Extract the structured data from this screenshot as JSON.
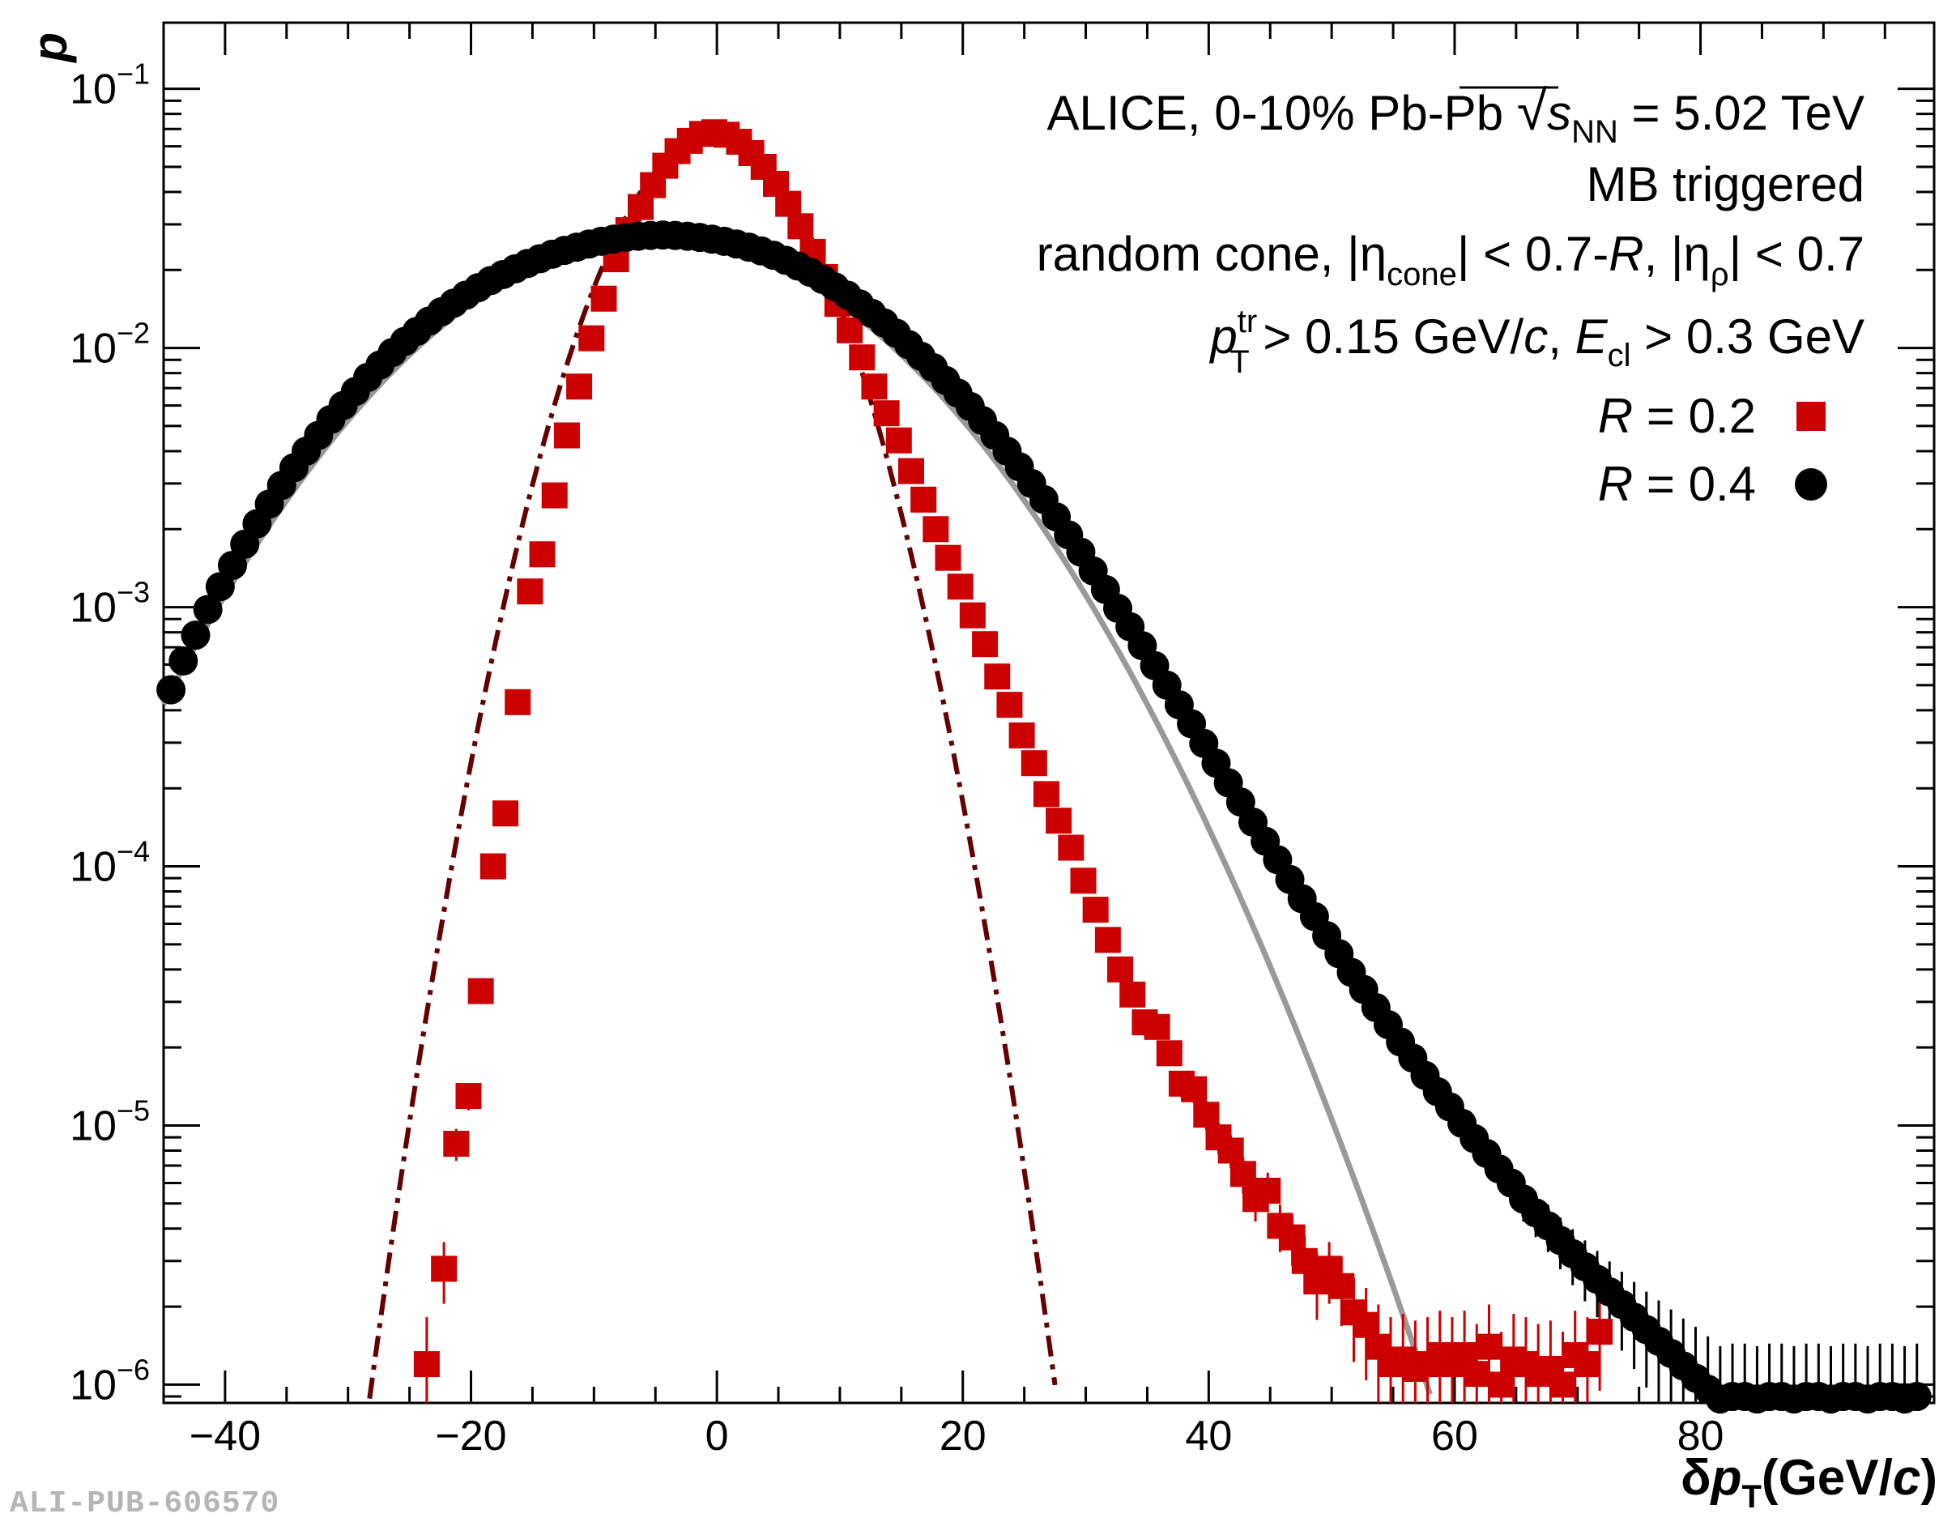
{
  "chart_data": {
    "type": "scatter",
    "xlabel": "δp_T (GeV/c)",
    "xlabel_parts": {
      "delta": "δ",
      "p": "p",
      "sub": "T",
      "unit_open": "(GeV/",
      "unit_c": "c",
      "unit_close": ")"
    },
    "ylabel": "p",
    "xlim": [
      -45,
      99
    ],
    "ylim": [
      8.5e-07,
      0.18
    ],
    "yscale": "log",
    "x_ticks": [
      -40,
      -20,
      0,
      20,
      40,
      60,
      80
    ],
    "x_tick_labels": [
      "−40",
      "−20",
      "0",
      "20",
      "40",
      "60",
      "80"
    ],
    "y_ticks": [
      1e-06,
      1e-05,
      0.0001,
      0.001,
      0.01,
      0.1
    ],
    "y_tick_labels": [
      {
        "base": "10",
        "exp": "−6"
      },
      {
        "base": "10",
        "exp": "−5"
      },
      {
        "base": "10",
        "exp": "−4"
      },
      {
        "base": "10",
        "exp": "−3"
      },
      {
        "base": "10",
        "exp": "−2"
      },
      {
        "base": "10",
        "exp": "−1"
      }
    ],
    "grid": false,
    "legend_position": "top-right",
    "annotations": [
      "ALICE, 0-10% Pb-Pb √s_NN = 5.02 TeV",
      "MB triggered",
      "random cone, |η_cone| < 0.7-R, |η_ρ| < 0.7",
      "p_T^tr > 0.15 GeV/c, E_cl > 0.3 GeV"
    ],
    "annotation_parts": {
      "line1_a": "ALICE, 0-10% Pb-Pb ",
      "line1_s": "s",
      "line1_nn": "NN",
      "line1_b": " = 5.02 TeV",
      "line3_a": "random cone, |η",
      "line3_cone": "cone",
      "line3_b": "| < 0.7-",
      "line3_R": "R",
      "line3_c": ", |η",
      "line3_rho": "ρ",
      "line3_d": "| < 0.7",
      "line4_p": "p",
      "line4_tr": "tr",
      "line4_T": "T",
      "line4_a": " > 0.15 GeV/",
      "line4_c": "c",
      "line4_b": ", ",
      "line4_E": "E",
      "line4_cl": "cl",
      "line4_d": " > 0.3 GeV"
    },
    "series": [
      {
        "name": "R = 0.2",
        "label_R": "R",
        "label_rest": " = 0.2",
        "marker": "square",
        "color": "#cc0000",
        "x": [
          -23.6,
          -22.2,
          -21.2,
          -20.2,
          -19.2,
          -18.2,
          -17.2,
          -16.2,
          -15.2,
          -14.2,
          -13.2,
          -12.2,
          -11.2,
          -10.2,
          -9.2,
          -8.2,
          -7.2,
          -6.2,
          -5.2,
          -4.2,
          -3.2,
          -2.2,
          -1.2,
          -0.2,
          0.8,
          1.8,
          2.8,
          3.8,
          4.8,
          5.8,
          6.8,
          7.8,
          8.8,
          9.8,
          10.8,
          11.8,
          12.8,
          13.8,
          14.8,
          15.8,
          16.8,
          17.8,
          18.8,
          19.8,
          20.8,
          21.8,
          22.8,
          23.8,
          24.8,
          25.8,
          26.8,
          27.8,
          28.8,
          29.8,
          30.8,
          31.8,
          32.8,
          33.8,
          34.8,
          35.8,
          36.8,
          37.8,
          38.8,
          39.8,
          40.8,
          41.8,
          42.8,
          43.8,
          44.8,
          45.8,
          46.8,
          47.8,
          48.8,
          49.8,
          50.8,
          51.8,
          52.8,
          53.8,
          54.8,
          55.8,
          56.8,
          57.8,
          58.8,
          59.8,
          60.8,
          61.8,
          62.8,
          63.8,
          64.8,
          65.8,
          66.8,
          67.8,
          68.8,
          69.8,
          70.8,
          71.8
        ],
        "y": [
          1.2e-06,
          2.8e-06,
          8.5e-06,
          1.3e-05,
          3.3e-05,
          0.0001,
          0.00016,
          0.00043,
          0.00115,
          0.0016,
          0.0027,
          0.0046,
          0.0071,
          0.0109,
          0.0155,
          0.022,
          0.0285,
          0.035,
          0.0425,
          0.0505,
          0.0575,
          0.063,
          0.067,
          0.068,
          0.0665,
          0.0625,
          0.0565,
          0.05,
          0.043,
          0.036,
          0.0295,
          0.0235,
          0.0188,
          0.0148,
          0.0117,
          0.0092,
          0.0071,
          0.0056,
          0.0044,
          0.00335,
          0.0026,
          0.002,
          0.00155,
          0.0012,
          0.00093,
          0.00072,
          0.00054,
          0.00042,
          0.00032,
          0.00025,
          0.00019,
          0.00015,
          0.000118,
          8.8e-05,
          6.8e-05,
          5.2e-05,
          4e-05,
          3.2e-05,
          2.5e-05,
          2.4e-05,
          1.9e-05,
          1.45e-05,
          1.38e-05,
          1.1e-05,
          9e-06,
          8e-06,
          6.5e-06,
          5.2e-06,
          5.6e-06,
          4.1e-06,
          3.7e-06,
          3e-06,
          2.5e-06,
          2.8e-06,
          2.4e-06,
          1.9e-06,
          1.7e-06,
          1.4e-06,
          1.2e-06,
          1.25e-06,
          1.15e-06,
          1.2e-06,
          1.3e-06,
          1.2e-06,
          1.3e-06,
          1.1e-06,
          1.4e-06,
          1e-06,
          1.25e-06,
          1.2e-06,
          1.1e-06,
          1.15e-06,
          1e-06,
          1.3e-06,
          1.2e-06,
          1.6e-06
        ]
      },
      {
        "name": "R = 0.4",
        "label_R": "R",
        "label_rest": " = 0.4",
        "marker": "circle",
        "color": "#000000",
        "x": [
          -44.4,
          -43.4,
          -42.4,
          -41.4,
          -40.4,
          -39.4,
          -38.4,
          -37.4,
          -36.4,
          -35.4,
          -34.4,
          -33.4,
          -32.4,
          -31.4,
          -30.4,
          -29.4,
          -28.4,
          -27.4,
          -26.4,
          -25.4,
          -24.4,
          -23.4,
          -22.4,
          -21.4,
          -20.4,
          -19.4,
          -18.4,
          -17.4,
          -16.4,
          -15.4,
          -14.4,
          -13.4,
          -12.4,
          -11.4,
          -10.4,
          -9.4,
          -8.4,
          -7.4,
          -6.4,
          -5.4,
          -4.4,
          -3.4,
          -2.4,
          -1.4,
          -0.4,
          0.6,
          1.6,
          2.6,
          3.6,
          4.6,
          5.6,
          6.6,
          7.6,
          8.6,
          9.6,
          10.6,
          11.6,
          12.6,
          13.6,
          14.6,
          15.6,
          16.6,
          17.6,
          18.6,
          19.6,
          20.6,
          21.6,
          22.6,
          23.6,
          24.6,
          25.6,
          26.6,
          27.6,
          28.6,
          29.6,
          30.6,
          31.6,
          32.6,
          33.6,
          34.6,
          35.6,
          36.6,
          37.6,
          38.6,
          39.6,
          40.6,
          41.6,
          42.6,
          43.6,
          44.6,
          45.6,
          46.6,
          47.6,
          48.6,
          49.6,
          50.6,
          51.6,
          52.6,
          53.6,
          54.6,
          55.6,
          56.6,
          57.6,
          58.6,
          59.6,
          60.6,
          61.6,
          62.6,
          63.6,
          64.6,
          65.6,
          66.6,
          67.6,
          68.6,
          69.6,
          70.6,
          71.6,
          72.6,
          73.6,
          74.6,
          75.6,
          76.6,
          77.6,
          78.6,
          79.6,
          80.6,
          81.6,
          82.6,
          83.6,
          84.6,
          85.6,
          86.6,
          87.6,
          88.6,
          89.6,
          90.6,
          91.6,
          92.6,
          93.6,
          94.6,
          95.6,
          96.6,
          97.6
        ],
        "y": [
          0.00048,
          0.00062,
          0.00078,
          0.00098,
          0.0012,
          0.00145,
          0.00175,
          0.0021,
          0.0025,
          0.00295,
          0.00345,
          0.004,
          0.0046,
          0.0053,
          0.006,
          0.0068,
          0.0077,
          0.0086,
          0.0096,
          0.0106,
          0.0116,
          0.0127,
          0.0138,
          0.0149,
          0.016,
          0.0171,
          0.0182,
          0.0192,
          0.0202,
          0.0212,
          0.0221,
          0.023,
          0.0238,
          0.0245,
          0.0252,
          0.0258,
          0.0263,
          0.0267,
          0.027,
          0.0272,
          0.0273,
          0.0272,
          0.027,
          0.0267,
          0.0263,
          0.0258,
          0.0252,
          0.0245,
          0.0237,
          0.0228,
          0.0218,
          0.0207,
          0.0196,
          0.0184,
          0.0172,
          0.016,
          0.0148,
          0.0136,
          0.0125,
          0.0114,
          0.0103,
          0.0093,
          0.0084,
          0.0075,
          0.0067,
          0.00595,
          0.00525,
          0.0046,
          0.004,
          0.00348,
          0.003,
          0.0026,
          0.00223,
          0.0019,
          0.00163,
          0.00138,
          0.00117,
          0.00099,
          0.00084,
          0.00071,
          0.000595,
          0.0005,
          0.00042,
          0.000355,
          0.000298,
          0.00025,
          0.00021,
          0.000177,
          0.000148,
          0.000125,
          0.000106,
          8.9e-05,
          7.5e-05,
          6.4e-05,
          5.4e-05,
          4.6e-05,
          3.9e-05,
          3.35e-05,
          2.85e-05,
          2.45e-05,
          2.1e-05,
          1.82e-05,
          1.56e-05,
          1.35e-05,
          1.18e-05,
          1.02e-05,
          8.9e-06,
          7.8e-06,
          6.8e-06,
          6e-06,
          5.2e-06,
          4.6e-06,
          4.1e-06,
          3.6e-06,
          3.2e-06,
          2.85e-06,
          2.55e-06,
          2.28e-06,
          2.04e-06,
          1.82e-06,
          1.63e-06,
          1.47e-06,
          1.32e-06,
          1.18e-06,
          1.06e-06,
          9.6e-07,
          8.8e-07,
          9e-07,
          9e-07,
          8.8e-07,
          9e-07,
          9e-07,
          8.8e-07,
          9e-07,
          9e-07,
          8.8e-07,
          9e-07,
          9e-07,
          8.8e-07,
          9e-07,
          9e-07,
          8.8e-07,
          9e-07
        ],
        "y_override_note": ""
      }
    ],
    "fits": [
      {
        "kind": "gaussian",
        "series": "R = 0.2",
        "style": "dash-dot",
        "color": "#660000",
        "mean": -0.3,
        "sigma": 5.9,
        "peak": 0.066
      },
      {
        "kind": "gaussian",
        "series": "R = 0.4",
        "style": "solid",
        "color": "#999999",
        "mean": -5.0,
        "sigma": 13.9,
        "peak": 0.0265
      }
    ]
  },
  "watermark": "ALI-PUB-606570"
}
